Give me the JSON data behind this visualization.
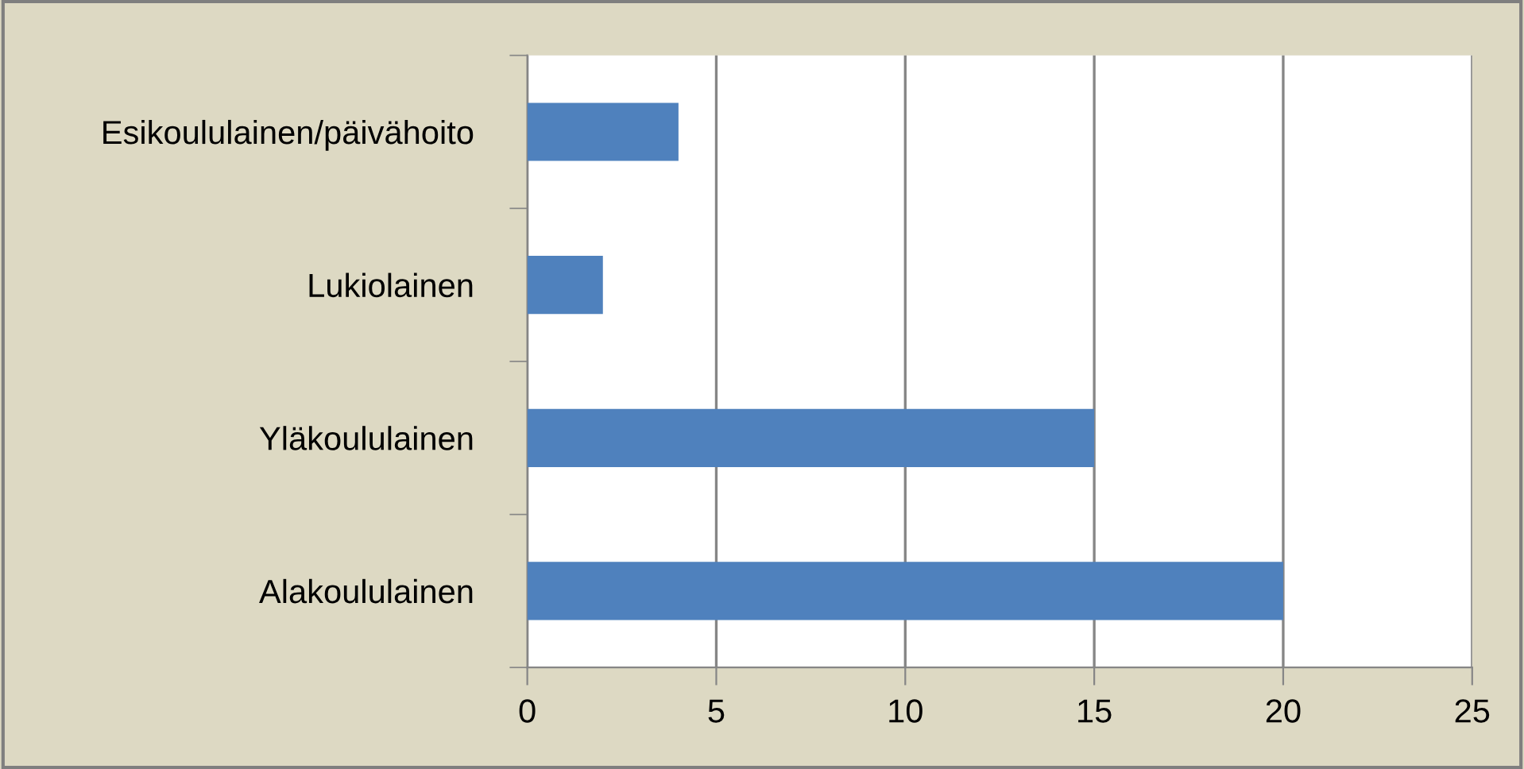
{
  "chart_data": {
    "type": "bar",
    "orientation": "horizontal",
    "categories": [
      "Esikoululainen/päivähoito",
      "Lukiolainen",
      "Yläkoululainen",
      "Alakoululainen"
    ],
    "values": [
      4,
      2,
      15,
      20
    ],
    "color": "#4f81bd",
    "xlim": [
      0,
      25
    ],
    "xticks": [
      0,
      5,
      10,
      15,
      20,
      25
    ],
    "grid": "x",
    "legend": false
  }
}
